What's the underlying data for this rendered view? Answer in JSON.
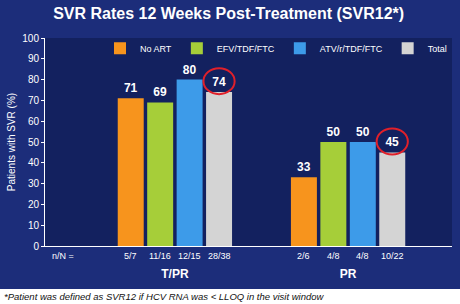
{
  "chart_data": {
    "type": "bar",
    "title": "SVR Rates 12 Weeks Post-Treatment (SVR12*)",
    "y_label": "Patients with SVR (%)",
    "categories": [
      "T/PR",
      "PR"
    ],
    "series": [
      {
        "name": "No ART",
        "color": "#f7941d",
        "values": [
          71,
          33
        ],
        "n_labels": [
          "5/7",
          "2/6"
        ]
      },
      {
        "name": "EFV/TDF/FTC",
        "color": "#a6ce39",
        "values": [
          69,
          50
        ],
        "n_labels": [
          "11/16",
          "4/8"
        ]
      },
      {
        "name": "ATV/r/TDF/FTC",
        "color": "#3d9be9",
        "values": [
          80,
          50
        ],
        "n_labels": [
          "12/15",
          "4/8"
        ]
      },
      {
        "name": "Total",
        "color": "#d4d4d4",
        "values": [
          74,
          45
        ],
        "n_labels": [
          "28/38",
          "10/22"
        ]
      }
    ],
    "n_label_title": "n/N =",
    "footnote": "*Patient was defined as SVR12 if HCV RNA was < LLOQ in the visit window",
    "ylim": [
      0,
      100
    ],
    "yticks": [
      0,
      10,
      20,
      30,
      40,
      50,
      60,
      70,
      80,
      90,
      100
    ],
    "grid": false,
    "data_labels": true,
    "legend": "top right"
  }
}
